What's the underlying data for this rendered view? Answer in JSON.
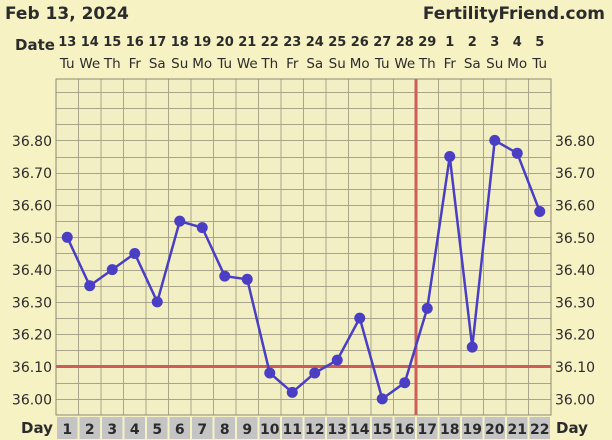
{
  "header": {
    "date": "Feb 13, 2024",
    "brand": "FertilityFriend.com"
  },
  "row_labels": {
    "date": "Date",
    "day": "Day"
  },
  "colors": {
    "background": "#f6f2c4",
    "plot_background": "#f3efc4",
    "grid": "#a9a58a",
    "line": "#4a3ec4",
    "reference": "#cf5b5b",
    "day_box": "#c4c4c4"
  },
  "chart_data": {
    "type": "line",
    "title": "",
    "xlabel": "Day",
    "ylabel": "",
    "ylim": [
      35.95,
      36.99
    ],
    "y_ticks": [
      36.0,
      36.1,
      36.2,
      36.3,
      36.4,
      36.5,
      36.6,
      36.7,
      36.8
    ],
    "y_tick_labels": [
      "36.00",
      "36.10",
      "36.20",
      "36.30",
      "36.40",
      "36.50",
      "36.60",
      "36.70",
      "36.80"
    ],
    "x": [
      1,
      2,
      3,
      4,
      5,
      6,
      7,
      8,
      9,
      10,
      11,
      12,
      13,
      14,
      15,
      16,
      17,
      18,
      19,
      20,
      21,
      22
    ],
    "dates": [
      "13",
      "14",
      "15",
      "16",
      "17",
      "18",
      "19",
      "20",
      "21",
      "22",
      "23",
      "24",
      "25",
      "26",
      "27",
      "28",
      "29",
      "1",
      "2",
      "3",
      "4",
      "5"
    ],
    "weekdays": [
      "Tu",
      "We",
      "Th",
      "Fr",
      "Sa",
      "Su",
      "Mo",
      "Tu",
      "We",
      "Th",
      "Fr",
      "Sa",
      "Su",
      "Mo",
      "Tu",
      "We",
      "Th",
      "Fr",
      "Sa",
      "Su",
      "Mo",
      "Tu"
    ],
    "series": [
      {
        "values": [
          36.5,
          36.35,
          36.4,
          36.45,
          36.3,
          36.55,
          36.53,
          36.38,
          36.37,
          36.08,
          36.02,
          36.08,
          36.12,
          36.25,
          36.0,
          36.05,
          36.28,
          36.75,
          36.16,
          36.8,
          36.76,
          36.58
        ]
      }
    ],
    "coverline": 36.1,
    "ovulation_day": 16,
    "grid": true
  }
}
